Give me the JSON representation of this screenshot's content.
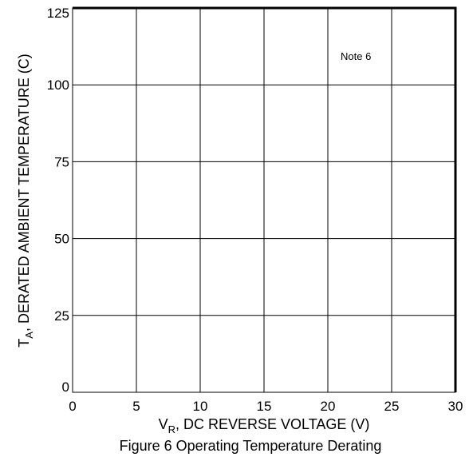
{
  "chart_data": {
    "type": "line",
    "title": "Figure 6  Operating Temperature Derating",
    "xlabel": {
      "main": "V",
      "sub": "R",
      "rest": ", DC REVERSE VOLTAGE (V)"
    },
    "ylabel": {
      "main": "T",
      "sub": "A",
      "rest": ", DERATED AMBIENT TEMPERATURE (C)"
    },
    "xlim": [
      0,
      30
    ],
    "ylim": [
      0,
      125
    ],
    "x_ticks": [
      "0",
      "5",
      "10",
      "15",
      "20",
      "25",
      "30"
    ],
    "y_ticks": [
      "0",
      "25",
      "50",
      "75",
      "100",
      "125"
    ],
    "grid": true,
    "annotation": "Note 6",
    "series": []
  },
  "colors": {
    "grid": "#000000",
    "text": "#000000",
    "background": "#ffffff"
  }
}
